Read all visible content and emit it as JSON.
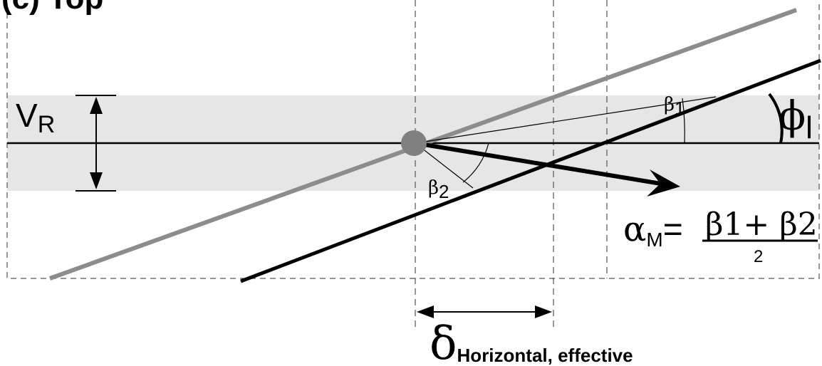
{
  "panel_label": "(c) Top",
  "labels": {
    "vr_main": "V",
    "vr_sub": "R",
    "beta1_main": "β",
    "beta1_sub": "1",
    "beta2_main": "β",
    "beta2_sub": "2",
    "phi_main": "ϕ",
    "phi_sub": "l",
    "alpha_main": "α",
    "alpha_sub": "M",
    "equals": "=",
    "numerator": "β1+ β2",
    "denominator": "2",
    "delta_main": "δ",
    "delta_sub": "Horizontal, effective"
  },
  "colors": {
    "band": "#e6e6e6",
    "dot": "#808080",
    "gray_line": "#8c8c8c",
    "black": "#000000"
  }
}
